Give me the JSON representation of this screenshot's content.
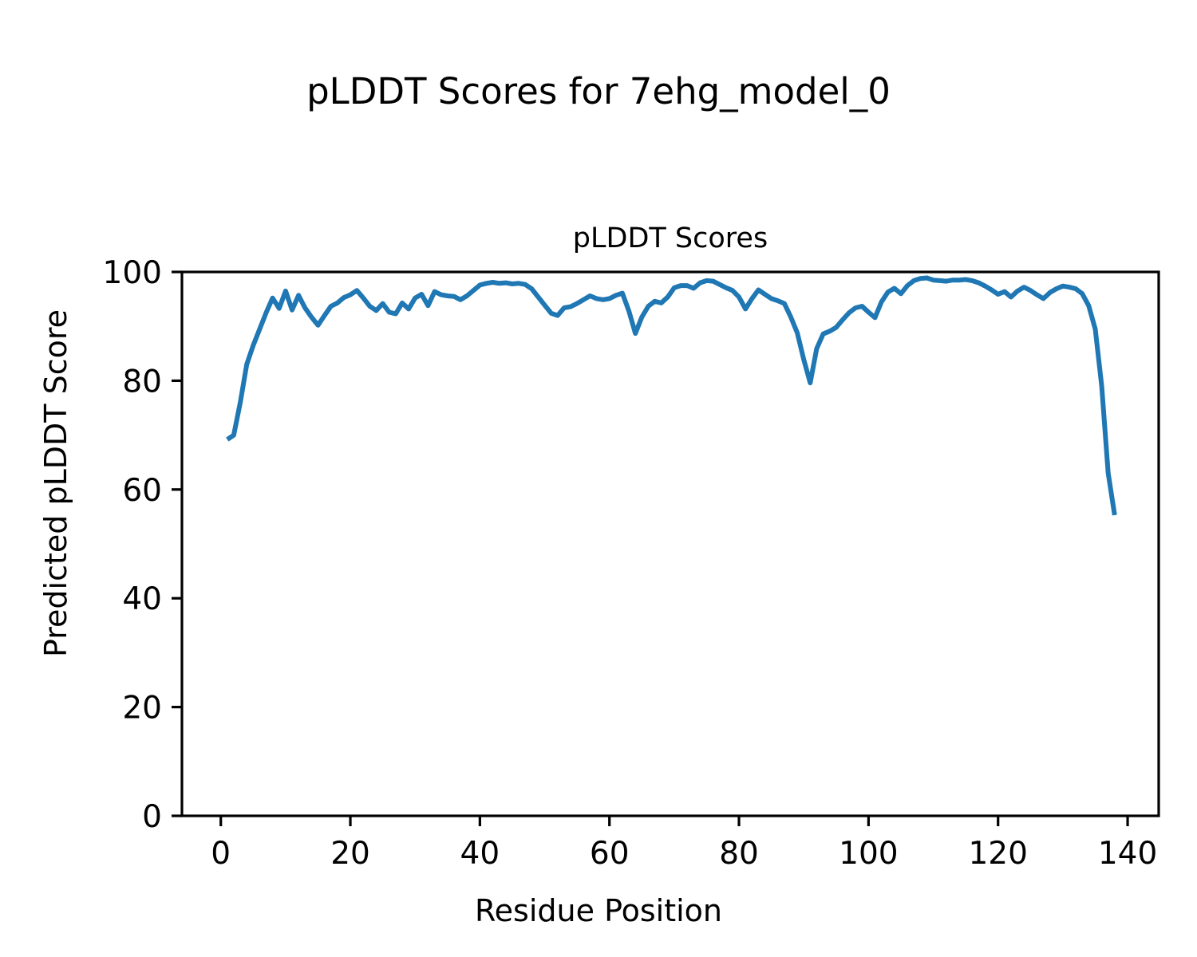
{
  "suptitle": "pLDDT Scores for 7ehg_model_0",
  "chart_data": {
    "type": "line",
    "title": "pLDDT Scores",
    "xlabel": "Residue Position",
    "ylabel": "Predicted pLDDT Score",
    "x_tick_labels": [
      "0",
      "20",
      "40",
      "60",
      "80",
      "100",
      "120",
      "140"
    ],
    "x_tick_values": [
      0,
      20,
      40,
      60,
      80,
      100,
      120,
      140
    ],
    "y_tick_labels": [
      "0",
      "20",
      "40",
      "60",
      "80",
      "100"
    ],
    "y_tick_values": [
      0,
      20,
      40,
      60,
      80,
      100
    ],
    "xlim": [
      -6.0,
      144.8
    ],
    "ylim": [
      0,
      100
    ],
    "grid": false,
    "legend_position": "none",
    "line_color": "#1f77b4",
    "axes_color": "#000000",
    "series": [
      {
        "name": "plddt",
        "x_start": 1,
        "x_step": 1,
        "values": [
          69.2,
          70.0,
          76.0,
          83.0,
          86.5,
          89.5,
          92.5,
          95.2,
          93.3,
          96.5,
          93.0,
          95.7,
          93.4,
          91.7,
          90.2,
          92.0,
          93.7,
          94.3,
          95.3,
          95.8,
          96.6,
          95.2,
          93.7,
          92.9,
          94.2,
          92.6,
          92.3,
          94.3,
          93.2,
          95.2,
          95.9,
          93.8,
          96.4,
          95.8,
          95.6,
          95.5,
          94.9,
          95.6,
          96.6,
          97.6,
          97.9,
          98.1,
          97.9,
          98.0,
          97.8,
          97.9,
          97.7,
          96.9,
          95.4,
          93.9,
          92.4,
          92.0,
          93.4,
          93.6,
          94.2,
          94.9,
          95.6,
          95.1,
          94.9,
          95.1,
          95.7,
          96.1,
          92.8,
          88.7,
          91.7,
          93.7,
          94.6,
          94.3,
          95.4,
          97.1,
          97.5,
          97.5,
          97.0,
          98.0,
          98.4,
          98.3,
          97.7,
          97.1,
          96.6,
          95.4,
          93.2,
          95.1,
          96.7,
          95.9,
          95.1,
          94.7,
          94.2,
          91.7,
          88.8,
          83.9,
          79.6,
          85.9,
          88.6,
          89.1,
          89.8,
          91.2,
          92.5,
          93.4,
          93.7,
          92.6,
          91.6,
          94.5,
          96.3,
          97.0,
          96.0,
          97.5,
          98.4,
          98.8,
          98.9,
          98.5,
          98.4,
          98.3,
          98.5,
          98.5,
          98.6,
          98.4,
          98.0,
          97.4,
          96.7,
          95.9,
          96.4,
          95.4,
          96.5,
          97.2,
          96.6,
          95.8,
          95.1,
          96.2,
          96.9,
          97.4,
          97.2,
          96.9,
          96.0,
          93.8,
          89.5,
          79.0,
          63.0,
          55.3
        ]
      }
    ]
  }
}
